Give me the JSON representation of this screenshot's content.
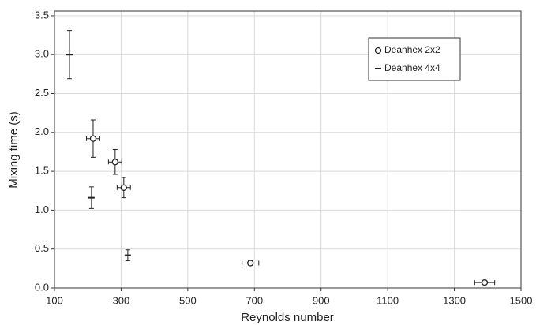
{
  "chart_data": {
    "type": "scatter",
    "xlabel": "Reynolds number",
    "ylabel": "Mixing time (s)",
    "xlim": [
      100,
      1500
    ],
    "xticks": [
      100,
      300,
      500,
      700,
      900,
      1100,
      1300,
      1500
    ],
    "ylim": [
      0,
      3.56
    ],
    "yticks": [
      {
        "value": 0,
        "label": "0.0"
      },
      0.5,
      {
        "value": 1,
        "label": "1.0"
      },
      1.5,
      {
        "value": 2,
        "label": "2.0"
      },
      2.5,
      {
        "value": 3,
        "label": "3.0"
      },
      3.5
    ],
    "grid": true,
    "legend": "upper right",
    "series": [
      {
        "name": "Deanhex 2x2",
        "color": "#222222",
        "marker": "circle",
        "x": [
          216,
          282,
          308,
          688,
          1391
        ],
        "values": [
          1.92,
          1.62,
          1.29,
          0.32,
          0.07
        ],
        "xerr": [
          20,
          20,
          20,
          25,
          30
        ],
        "yerr": [
          0.24,
          0.16,
          0.13,
          0.03,
          0.02
        ]
      },
      {
        "name": "Deanhex 4x4",
        "color": "#222222",
        "marker": "dash",
        "x": [
          145,
          211,
          320
        ],
        "values": [
          3.0,
          1.16,
          0.42
        ],
        "yerr": [
          0.31,
          0.14,
          0.07
        ]
      }
    ]
  }
}
